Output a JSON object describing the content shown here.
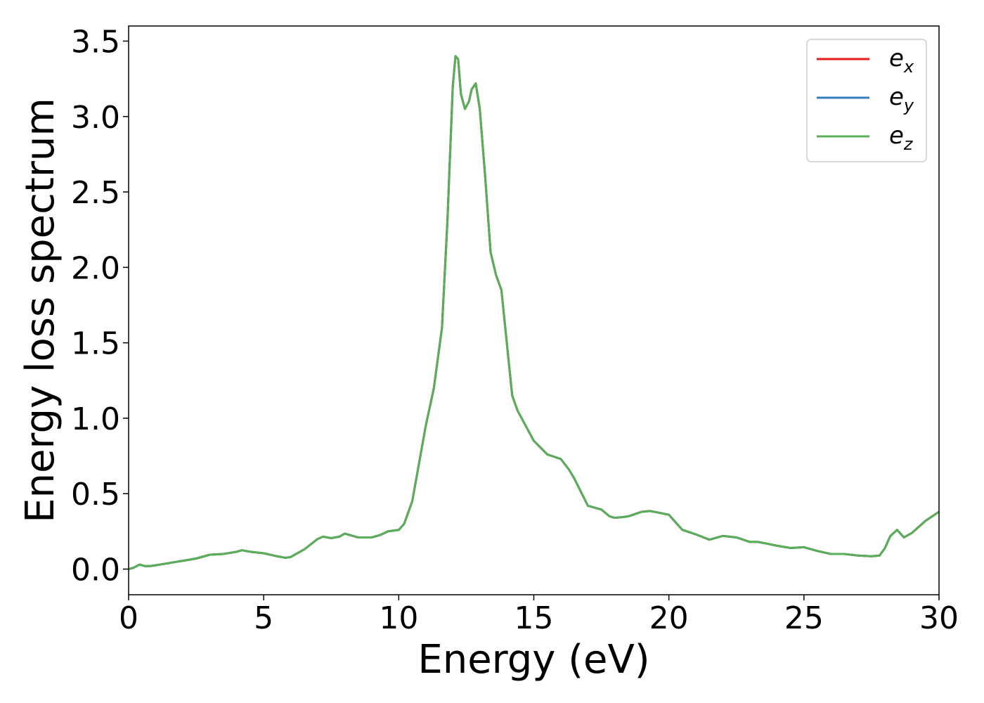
{
  "chart_data": {
    "type": "line",
    "title": "",
    "xlabel": "Energy (eV)",
    "ylabel": "Energy loss spectrum",
    "xlim": [
      0,
      30
    ],
    "ylim": [
      -0.17,
      3.6
    ],
    "x_ticks": [
      "0",
      "5",
      "10",
      "15",
      "20",
      "25",
      "30"
    ],
    "y_ticks": [
      "0.0",
      "0.5",
      "1.0",
      "1.5",
      "2.0",
      "2.5",
      "3.0",
      "3.5"
    ],
    "grid": false,
    "legend_position": "top-right",
    "series": [
      {
        "name": "e_x",
        "label_main": "e",
        "label_sub": "x",
        "color": "#e41a1c"
      },
      {
        "name": "e_y",
        "label_main": "e",
        "label_sub": "y",
        "color": "#377eb8"
      },
      {
        "name": "e_z",
        "label_main": "e",
        "label_sub": "z",
        "color": "#5aae57"
      }
    ],
    "x": [
      0,
      0.2,
      0.4,
      0.6,
      0.8,
      1.0,
      1.5,
      2.0,
      2.5,
      3.0,
      3.5,
      4.0,
      4.2,
      4.5,
      5.0,
      5.5,
      5.8,
      6.0,
      6.5,
      7.0,
      7.2,
      7.5,
      7.8,
      8.0,
      8.3,
      8.5,
      9.0,
      9.3,
      9.6,
      10.0,
      10.2,
      10.5,
      10.8,
      11.0,
      11.3,
      11.6,
      11.8,
      12.0,
      12.1,
      12.2,
      12.3,
      12.45,
      12.6,
      12.7,
      12.85,
      13.0,
      13.2,
      13.4,
      13.6,
      13.8,
      14.0,
      14.2,
      14.4,
      14.7,
      15.0,
      15.5,
      16.0,
      16.3,
      16.5,
      17.0,
      17.5,
      17.8,
      18.0,
      18.3,
      18.5,
      19.0,
      19.3,
      19.6,
      20.0,
      20.5,
      21.0,
      21.5,
      22.0,
      22.5,
      23.0,
      23.3,
      23.6,
      24.0,
      24.5,
      25.0,
      25.5,
      26.0,
      26.5,
      27.0,
      27.5,
      27.8,
      28.0,
      28.2,
      28.45,
      28.7,
      29.0,
      29.5,
      30.0
    ],
    "y": [
      0.0,
      0.01,
      0.03,
      0.02,
      0.02,
      0.025,
      0.04,
      0.055,
      0.07,
      0.095,
      0.1,
      0.115,
      0.125,
      0.115,
      0.105,
      0.085,
      0.075,
      0.08,
      0.13,
      0.2,
      0.215,
      0.205,
      0.215,
      0.235,
      0.22,
      0.21,
      0.21,
      0.225,
      0.25,
      0.26,
      0.3,
      0.45,
      0.75,
      0.95,
      1.2,
      1.6,
      2.3,
      3.2,
      3.4,
      3.38,
      3.15,
      3.05,
      3.1,
      3.18,
      3.22,
      3.05,
      2.6,
      2.1,
      1.95,
      1.85,
      1.5,
      1.15,
      1.05,
      0.95,
      0.85,
      0.76,
      0.73,
      0.66,
      0.6,
      0.42,
      0.395,
      0.35,
      0.34,
      0.345,
      0.35,
      0.38,
      0.385,
      0.375,
      0.36,
      0.26,
      0.23,
      0.195,
      0.22,
      0.21,
      0.18,
      0.18,
      0.17,
      0.155,
      0.14,
      0.145,
      0.12,
      0.1,
      0.1,
      0.09,
      0.085,
      0.09,
      0.14,
      0.22,
      0.26,
      0.21,
      0.24,
      0.32,
      0.38
    ]
  }
}
